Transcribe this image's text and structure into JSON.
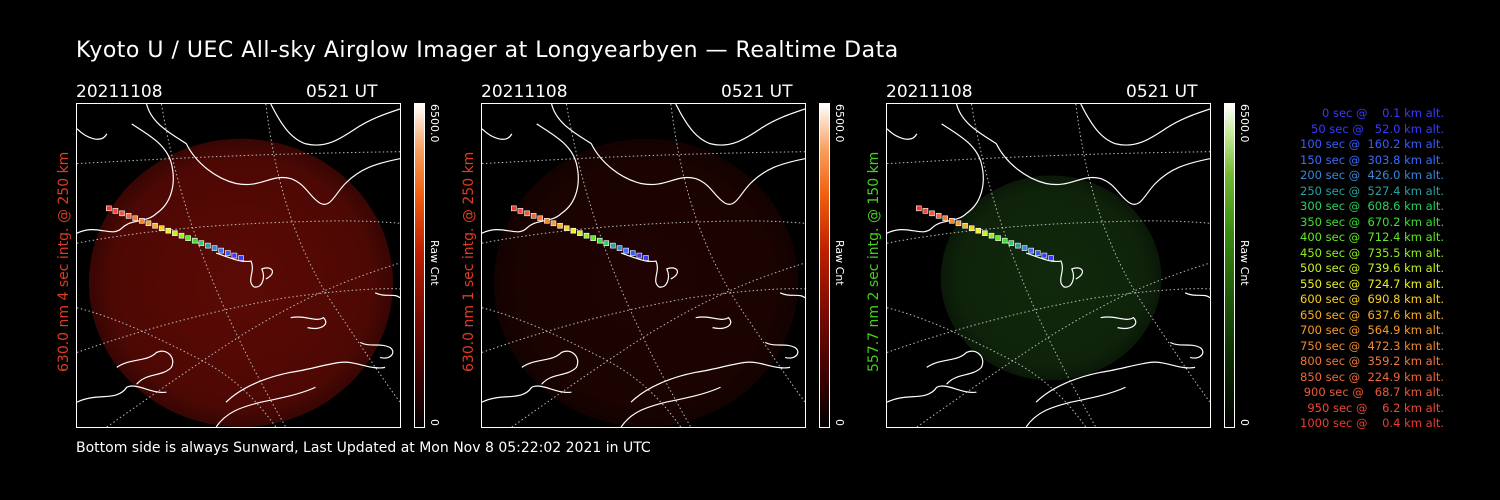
{
  "title": "Kyoto U / UEC All-sky Airglow Imager at Longyearbyen — Realtime Data",
  "footer": "Bottom side is always Sunward, Last Updated at Mon Nov  8 05:22:02 2021 in UTC",
  "colors": {
    "red_label": "#e23a1f",
    "green_label": "#44d21a",
    "background": "#000000",
    "red_glow": "#7a0d06",
    "green_glow": "#1e4a16"
  },
  "panels": [
    {
      "date": "20211108",
      "time": "0521 UT",
      "ylabel": "630.0 nm 4 sec intg. @ 250 km",
      "cbar_max": "6500.0",
      "cbar_min": "0",
      "cbar_title": "Raw Cnt",
      "channel": "red",
      "brightness": 0.75
    },
    {
      "date": "20211108",
      "time": "0521 UT",
      "ylabel": "630.0 nm 1 sec intg. @ 250 km",
      "cbar_max": "6500.0",
      "cbar_min": "0",
      "cbar_title": "Raw Cnt",
      "channel": "red",
      "brightness": 0.25
    },
    {
      "date": "20211108",
      "time": "0521 UT",
      "ylabel": "557.7 nm 2 sec intg. @ 150 km",
      "cbar_max": "6500.0",
      "cbar_min": "0",
      "cbar_title": "Raw Cnt",
      "channel": "green",
      "brightness": 0.55
    }
  ],
  "legend": [
    {
      "text": "0 sec @    0.1 km alt.",
      "color": "#3a3aff"
    },
    {
      "text": "50 sec @   52.0 km alt.",
      "color": "#3a3aff"
    },
    {
      "text": "100 sec @  160.2 km alt.",
      "color": "#3a5aff"
    },
    {
      "text": "150 sec @  303.8 km alt.",
      "color": "#3a6cff"
    },
    {
      "text": "200 sec @  426.0 km alt.",
      "color": "#3a86d8"
    },
    {
      "text": "250 sec @  527.4 km alt.",
      "color": "#2aa0a0"
    },
    {
      "text": "300 sec @  608.6 km alt.",
      "color": "#2ad060"
    },
    {
      "text": "350 sec @  670.2 km alt.",
      "color": "#3ae030"
    },
    {
      "text": "400 sec @  712.4 km alt.",
      "color": "#60e828"
    },
    {
      "text": "450 sec @  735.5 km alt.",
      "color": "#90ee20"
    },
    {
      "text": "500 sec @  739.6 km alt.",
      "color": "#c8f020"
    },
    {
      "text": "550 sec @  724.7 km alt.",
      "color": "#f0f020"
    },
    {
      "text": "600 sec @  690.8 km alt.",
      "color": "#f8d020"
    },
    {
      "text": "650 sec @  637.6 km alt.",
      "color": "#f8b020"
    },
    {
      "text": "700 sec @  564.9 km alt.",
      "color": "#f89a28"
    },
    {
      "text": "750 sec @  472.3 km alt.",
      "color": "#f08a30"
    },
    {
      "text": "800 sec @  359.2 km alt.",
      "color": "#f07838"
    },
    {
      "text": "850 sec @  224.9 km alt.",
      "color": "#f06838"
    },
    {
      "text": "900 sec @   68.7 km alt.",
      "color": "#f05838"
    },
    {
      "text": "950 sec @    6.2 km alt.",
      "color": "#f04838"
    },
    {
      "text": "1000 sec @    0.4 km alt.",
      "color": "#f03a30"
    }
  ]
}
